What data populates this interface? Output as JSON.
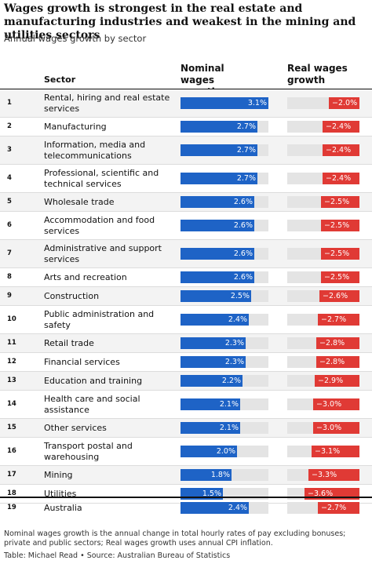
{
  "title": "Wages growth is strongest in the real estate and manufacturing industries and weakest in the mining and utilities sectors",
  "subtitle": "Annual wages growth by sector",
  "columns": {
    "sector": "Sector",
    "nominal": "Nominal wages growth",
    "real": "Real wages growth"
  },
  "colors": {
    "nominal_bar": "#1e63c6",
    "real_bar": "#e03a35",
    "track": "#e4e4e4",
    "alt_row": "#f3f3f3"
  },
  "chart_data": {
    "type": "table",
    "value_unit": "%",
    "nominal_range": [
      0,
      3.1
    ],
    "real_range": [
      -4.7,
      0
    ],
    "rows": [
      {
        "rank": "1",
        "sector": "Rental, hiring and real estate services",
        "nominal": 3.1,
        "real": -2.0,
        "nominal_label": "3.1%",
        "real_label": "−2.0%"
      },
      {
        "rank": "2",
        "sector": "Manufacturing",
        "nominal": 2.7,
        "real": -2.4,
        "nominal_label": "2.7%",
        "real_label": "−2.4%"
      },
      {
        "rank": "3",
        "sector": "Information, media and telecommunications",
        "nominal": 2.7,
        "real": -2.4,
        "nominal_label": "2.7%",
        "real_label": "−2.4%"
      },
      {
        "rank": "4",
        "sector": "Professional, scientific and technical services",
        "nominal": 2.7,
        "real": -2.4,
        "nominal_label": "2.7%",
        "real_label": "−2.4%"
      },
      {
        "rank": "5",
        "sector": "Wholesale trade",
        "nominal": 2.6,
        "real": -2.5,
        "nominal_label": "2.6%",
        "real_label": "−2.5%"
      },
      {
        "rank": "6",
        "sector": "Accommodation and food services",
        "nominal": 2.6,
        "real": -2.5,
        "nominal_label": "2.6%",
        "real_label": "−2.5%"
      },
      {
        "rank": "7",
        "sector": "Administrative and support services",
        "nominal": 2.6,
        "real": -2.5,
        "nominal_label": "2.6%",
        "real_label": "−2.5%"
      },
      {
        "rank": "8",
        "sector": "Arts and recreation",
        "nominal": 2.6,
        "real": -2.5,
        "nominal_label": "2.6%",
        "real_label": "−2.5%"
      },
      {
        "rank": "9",
        "sector": "Construction",
        "nominal": 2.5,
        "real": -2.6,
        "nominal_label": "2.5%",
        "real_label": "−2.6%"
      },
      {
        "rank": "10",
        "sector": "Public administration and safety",
        "nominal": 2.4,
        "real": -2.7,
        "nominal_label": "2.4%",
        "real_label": "−2.7%"
      },
      {
        "rank": "11",
        "sector": "Retail trade",
        "nominal": 2.3,
        "real": -2.8,
        "nominal_label": "2.3%",
        "real_label": "−2.8%"
      },
      {
        "rank": "12",
        "sector": "Financial services",
        "nominal": 2.3,
        "real": -2.8,
        "nominal_label": "2.3%",
        "real_label": "−2.8%"
      },
      {
        "rank": "13",
        "sector": "Education and training",
        "nominal": 2.2,
        "real": -2.9,
        "nominal_label": "2.2%",
        "real_label": "−2.9%"
      },
      {
        "rank": "14",
        "sector": "Health care and social assistance",
        "nominal": 2.1,
        "real": -3.0,
        "nominal_label": "2.1%",
        "real_label": "−3.0%"
      },
      {
        "rank": "15",
        "sector": "Other services",
        "nominal": 2.1,
        "real": -3.0,
        "nominal_label": "2.1%",
        "real_label": "−3.0%"
      },
      {
        "rank": "16",
        "sector": "Transport postal and warehousing",
        "nominal": 2.0,
        "real": -3.1,
        "nominal_label": "2.0%",
        "real_label": "−3.1%"
      },
      {
        "rank": "17",
        "sector": "Mining",
        "nominal": 1.8,
        "real": -3.3,
        "nominal_label": "1.8%",
        "real_label": "−3.3%"
      },
      {
        "rank": "18",
        "sector": "Utilities",
        "nominal": 1.5,
        "real": -3.6,
        "nominal_label": "1.5%",
        "real_label": "−3.6%"
      },
      {
        "rank": "19",
        "sector": "Australia",
        "nominal": 2.4,
        "real": -2.7,
        "nominal_label": "2.4%",
        "real_label": "−2.7%",
        "total": true
      }
    ]
  },
  "footnote": "Nominal wages growth is the annual change in total hourly rates of pay excluding bonuses; private and public sectors; Real wages growth uses annual CPI inflation.",
  "source": "Table: Michael Read • Source: Australian Bureau of Statistics"
}
